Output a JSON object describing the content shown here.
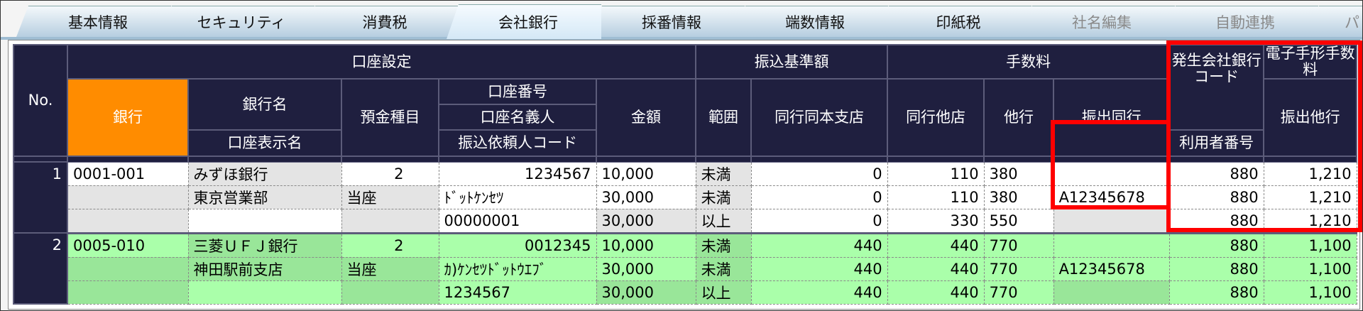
{
  "tabs": [
    {
      "label": "基本情報",
      "state": "normal"
    },
    {
      "label": "セキュリティ",
      "state": "normal"
    },
    {
      "label": "消費税",
      "state": "normal"
    },
    {
      "label": "会社銀行",
      "state": "active"
    },
    {
      "label": "採番情報",
      "state": "normal"
    },
    {
      "label": "端数情報",
      "state": "normal"
    },
    {
      "label": "印紙税",
      "state": "normal"
    },
    {
      "label": "社名編集",
      "state": "disabled"
    },
    {
      "label": "自動連携",
      "state": "disabled"
    },
    {
      "label": "パ",
      "state": "disabled"
    }
  ],
  "header": {
    "no": "No.",
    "account_settings": "口座設定",
    "bank": "銀行",
    "bank_name": "銀行名",
    "account_display_name": "口座表示名",
    "deposit_type": "預金種目",
    "account_number": "口座番号",
    "account_holder": "口座名義人",
    "transfer_requester_code": "振込依頼人コード",
    "transfer_threshold": "振込基準額",
    "amount": "金額",
    "range": "範囲",
    "fees": "手数料",
    "same_bank_same_branch": "同行同本支店",
    "same_bank_other_branch": "同行他店",
    "other_bank": "他行",
    "issuer_bank_code": "発生会社銀行コード",
    "user_number": "利用者番号",
    "e_note_fees": "電子手形手数料",
    "issue_same_bank": "振出同行",
    "issue_other_bank": "振出他行"
  },
  "colors": {
    "header_bg": "#1f1f3f",
    "bank_header": "#ff8c00",
    "highlight_box": "#ff0000",
    "row_green": "#aaffaa"
  },
  "rows": [
    {
      "no": "1",
      "bank_code": "0001-001",
      "bank_name": "みずほ銀行",
      "branch_name": "東京営業部",
      "account_display_name": "",
      "deposit_type_code": "2",
      "deposit_type": "当座",
      "account_number": "1234567",
      "account_holder": "ﾄﾞｯﾄｹﾝｾﾂ",
      "requester_code": "00000001",
      "user_number": "A12345678",
      "tiers": [
        {
          "amount": "10,000",
          "range": "未満",
          "same_branch": "0",
          "other_branch": "110",
          "other_bank": "380",
          "e_same": "880",
          "e_other": "1,210"
        },
        {
          "amount": "30,000",
          "range": "未満",
          "same_branch": "0",
          "other_branch": "110",
          "other_bank": "380",
          "e_same": "880",
          "e_other": "1,210"
        },
        {
          "amount": "30,000",
          "range": "以上",
          "same_branch": "0",
          "other_branch": "330",
          "other_bank": "550",
          "e_same": "880",
          "e_other": "1,210"
        }
      ]
    },
    {
      "no": "2",
      "bank_code": "0005-010",
      "bank_name": "三菱ＵＦＪ銀行",
      "branch_name": "神田駅前支店",
      "account_display_name": "",
      "deposit_type_code": "2",
      "deposit_type": "当座",
      "account_number": "0012345",
      "account_holder": "ｶ)ｹﾝｾﾂﾄﾞｯﾄｳｴﾌﾞ",
      "requester_code": "1234567",
      "user_number": "A12345678",
      "tiers": [
        {
          "amount": "10,000",
          "range": "未満",
          "same_branch": "440",
          "other_branch": "440",
          "other_bank": "770",
          "e_same": "880",
          "e_other": "1,100"
        },
        {
          "amount": "30,000",
          "range": "未満",
          "same_branch": "440",
          "other_branch": "440",
          "other_bank": "770",
          "e_same": "880",
          "e_other": "1,100"
        },
        {
          "amount": "30,000",
          "range": "以上",
          "same_branch": "440",
          "other_branch": "440",
          "other_bank": "770",
          "e_same": "880",
          "e_other": "1,100"
        }
      ]
    }
  ]
}
